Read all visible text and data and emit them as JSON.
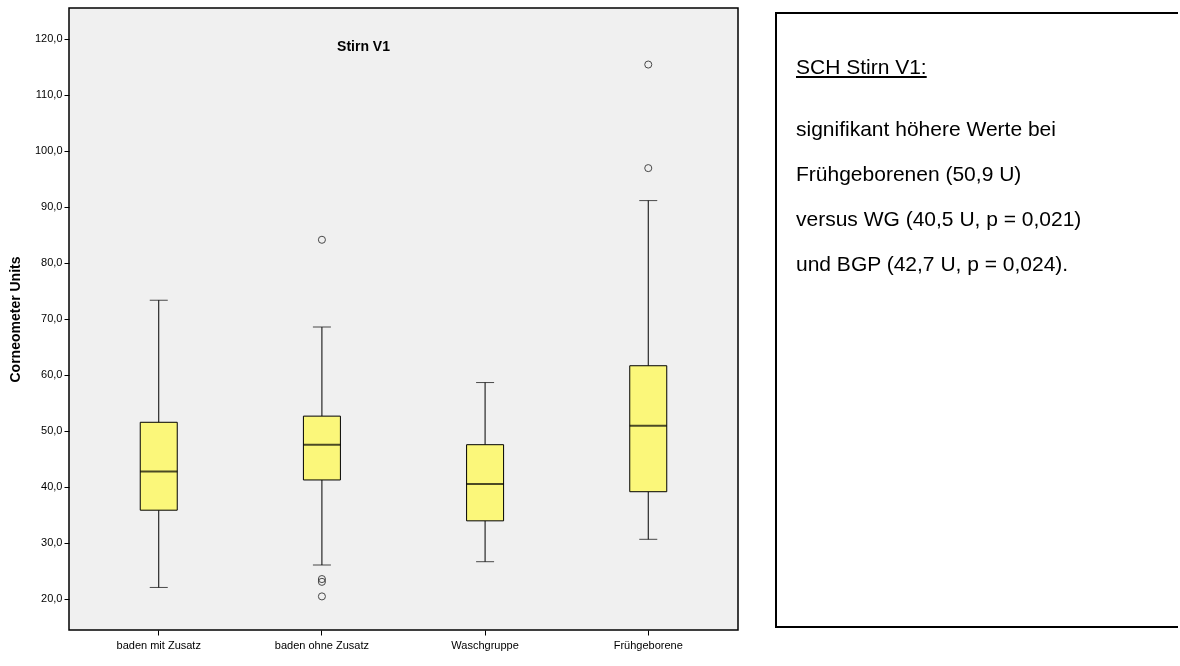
{
  "chart_data": [
    {
      "type": "box",
      "title": "Stirn V1",
      "ylabel": "Corneometer Units",
      "categories": [
        "baden mit Zusatz",
        "baden ohne Zusatz",
        "Waschgruppe",
        "Frühgeborene"
      ],
      "ylim": [
        14.4,
        125.5
      ],
      "yticks": [
        {
          "value": 20,
          "label": "20,0"
        },
        {
          "value": 30,
          "label": "30,0"
        },
        {
          "value": 40,
          "label": "40,0"
        },
        {
          "value": 50,
          "label": "50,0"
        },
        {
          "value": 60,
          "label": "60,0"
        },
        {
          "value": 70,
          "label": "70,0"
        },
        {
          "value": 80,
          "label": "80,0"
        },
        {
          "value": 90,
          "label": "90,0"
        },
        {
          "value": 100,
          "label": "100,0"
        },
        {
          "value": 110,
          "label": "110,0"
        },
        {
          "value": 120,
          "label": "120,0"
        }
      ],
      "series": [
        {
          "color": "#fbf77a",
          "boxes": [
            {
              "low": 22.0,
              "q1": 35.8,
              "median": 42.7,
              "q3": 51.5,
              "high": 73.3
            },
            {
              "low": 26.0,
              "q1": 41.2,
              "median": 47.5,
              "q3": 52.6,
              "high": 68.5,
              "outliers": [
                84.1,
                23.5,
                23.0,
                20.4
              ]
            },
            {
              "low": 26.6,
              "q1": 33.9,
              "median": 40.5,
              "q3": 47.5,
              "high": 58.6
            },
            {
              "low": 30.6,
              "q1": 39.1,
              "median": 50.9,
              "q3": 61.6,
              "high": 91.1,
              "outliers": [
                115.4,
                96.9
              ]
            }
          ]
        }
      ]
    },
    {
      "type": "other",
      "title": "SCH Stirn V1:",
      "annotations": [
        "signifikant höhere Werte bei",
        "Frühgeborenen (50,9 U)",
        "versus WG (40,5 U, p = 0,021)",
        "und BGP (42,7 U, p = 0,024)."
      ]
    }
  ]
}
